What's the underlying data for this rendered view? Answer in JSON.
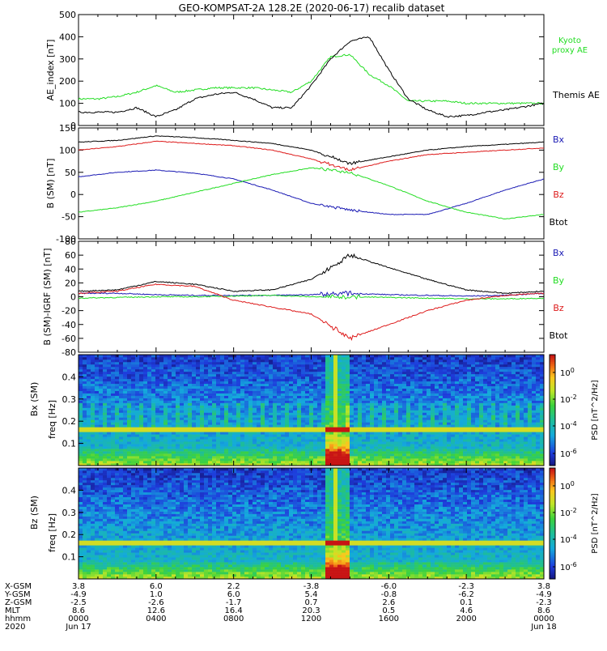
{
  "title": "GEO-KOMPSAT-2A 128.2E (2020-06-17) recalib dataset",
  "colors": {
    "bx": "#1a1ab4",
    "by": "#22dd22",
    "bz": "#dd1a1a",
    "btot": "#000000",
    "kyoto": "#22dd22",
    "themis": "#000000"
  },
  "chart_data": [
    {
      "type": "line",
      "ylabel": "AE_index [nT]",
      "ylim": [
        0,
        500
      ],
      "yticks": [
        0,
        100,
        200,
        300,
        400,
        500
      ],
      "legend": [
        {
          "name": "Kyoto proxy AE",
          "color": "#22dd22"
        },
        {
          "name": "Themis AE",
          "color": "#000000"
        }
      ],
      "x_hours": [
        0,
        1,
        2,
        3,
        4,
        5,
        6,
        7,
        8,
        9,
        10,
        11,
        12,
        13,
        14,
        15,
        16,
        17,
        18,
        19,
        20,
        21,
        22,
        23,
        24
      ],
      "series": [
        {
          "name": "Kyoto proxy AE",
          "values": [
            120,
            120,
            130,
            150,
            180,
            150,
            160,
            170,
            170,
            170,
            160,
            150,
            200,
            310,
            320,
            230,
            180,
            110,
            110,
            110,
            100,
            100,
            100,
            100,
            100
          ]
        },
        {
          "name": "Themis AE",
          "values": [
            60,
            60,
            60,
            80,
            40,
            70,
            120,
            140,
            150,
            120,
            80,
            80,
            180,
            300,
            380,
            400,
            250,
            120,
            70,
            40,
            45,
            60,
            70,
            85,
            100
          ]
        }
      ]
    },
    {
      "type": "line",
      "ylabel": "B (SM) [nT]",
      "ylim": [
        -100,
        150
      ],
      "yticks": [
        -100,
        -50,
        0,
        50,
        100,
        150
      ],
      "legend": [
        {
          "name": "Bx",
          "color": "#1a1ab4"
        },
        {
          "name": "By",
          "color": "#22dd22"
        },
        {
          "name": "Bz",
          "color": "#dd1a1a"
        },
        {
          "name": "Btot",
          "color": "#000000"
        }
      ],
      "x_hours": [
        0,
        2,
        4,
        6,
        8,
        10,
        12,
        14,
        16,
        18,
        20,
        22,
        24
      ],
      "series": [
        {
          "name": "Bx",
          "values": [
            40,
            50,
            55,
            48,
            35,
            10,
            -20,
            -35,
            -45,
            -45,
            -20,
            10,
            35
          ]
        },
        {
          "name": "By",
          "values": [
            -40,
            -30,
            -15,
            5,
            25,
            45,
            60,
            50,
            20,
            -15,
            -40,
            -55,
            -45
          ]
        },
        {
          "name": "Bz",
          "values": [
            100,
            108,
            120,
            115,
            110,
            100,
            80,
            55,
            75,
            90,
            95,
            100,
            105
          ]
        },
        {
          "name": "Btot",
          "values": [
            118,
            122,
            132,
            128,
            122,
            115,
            100,
            70,
            85,
            100,
            108,
            113,
            118
          ]
        }
      ]
    },
    {
      "type": "line",
      "ylabel": "B (SM)-IGRF (SM) [nT]",
      "ylim": [
        -80,
        80
      ],
      "yticks": [
        -80,
        -60,
        -40,
        -20,
        0,
        20,
        40,
        60,
        80
      ],
      "legend": [
        {
          "name": "Bx",
          "color": "#1a1ab4"
        },
        {
          "name": "By",
          "color": "#22dd22"
        },
        {
          "name": "Bz",
          "color": "#dd1a1a"
        },
        {
          "name": "Btot",
          "color": "#000000"
        }
      ],
      "x_hours": [
        0,
        2,
        4,
        6,
        8,
        10,
        12,
        14,
        16,
        18,
        20,
        22,
        24
      ],
      "series": [
        {
          "name": "Bx",
          "values": [
            5,
            5,
            3,
            2,
            2,
            2,
            3,
            5,
            3,
            2,
            1,
            2,
            5
          ]
        },
        {
          "name": "By",
          "values": [
            -2,
            -1,
            0,
            0,
            1,
            2,
            0,
            0,
            -1,
            -2,
            -3,
            -3,
            -2
          ]
        },
        {
          "name": "Bz",
          "values": [
            5,
            8,
            18,
            15,
            -5,
            -15,
            -25,
            -60,
            -40,
            -20,
            -5,
            2,
            5
          ]
        },
        {
          "name": "Btot",
          "values": [
            8,
            10,
            22,
            18,
            8,
            10,
            25,
            60,
            42,
            25,
            10,
            5,
            8
          ]
        }
      ]
    },
    {
      "type": "heatmap",
      "panel": "Bx (SM)",
      "ylabel": "freq [Hz]",
      "yticks": [
        0.1,
        0.2,
        0.3,
        0.4
      ],
      "ylim": [
        0,
        0.5
      ],
      "colorbar_label": "PSD [nT^2/Hz]",
      "colorbar_ticks": [
        "10^0",
        "10^-2",
        "10^-4",
        "10^-6"
      ]
    },
    {
      "type": "heatmap",
      "panel": "Bz (SM)",
      "ylabel": "freq [Hz]",
      "yticks": [
        0.1,
        0.2,
        0.3,
        0.4
      ],
      "ylim": [
        0,
        0.5
      ],
      "colorbar_label": "PSD [nT^2/Hz]",
      "colorbar_ticks": [
        "10^0",
        "10^-2",
        "10^-4",
        "10^-6"
      ]
    }
  ],
  "axis_rows": {
    "labels": [
      "X-GSM",
      "Y-GSM",
      "Z-GSM",
      "MLT",
      "hhmm",
      "2020"
    ],
    "x_positions": [
      "0000",
      "0400",
      "0800",
      "1200",
      "1600",
      "2000",
      "0000"
    ],
    "columns": [
      {
        "x_gsm": "3.8",
        "y_gsm": "-4.9",
        "z_gsm": "-2.5",
        "mlt": "8.6",
        "hhmm": "0000",
        "date": "Jun 17"
      },
      {
        "x_gsm": "6.0",
        "y_gsm": "1.0",
        "z_gsm": "-2.6",
        "mlt": "12.6",
        "hhmm": "0400",
        "date": ""
      },
      {
        "x_gsm": "2.2",
        "y_gsm": "6.0",
        "z_gsm": "-1.7",
        "mlt": "16.4",
        "hhmm": "0800",
        "date": ""
      },
      {
        "x_gsm": "-3.8",
        "y_gsm": "5.4",
        "z_gsm": "0.7",
        "mlt": "20.3",
        "hhmm": "1200",
        "date": ""
      },
      {
        "x_gsm": "-6.0",
        "y_gsm": "-0.8",
        "z_gsm": "2.6",
        "mlt": "0.5",
        "hhmm": "1600",
        "date": ""
      },
      {
        "x_gsm": "-2.3",
        "y_gsm": "-6.2",
        "z_gsm": "0.1",
        "mlt": "4.6",
        "hhmm": "2000",
        "date": ""
      },
      {
        "x_gsm": "3.8",
        "y_gsm": "-4.9",
        "z_gsm": "-2.3",
        "mlt": "8.6",
        "hhmm": "0000",
        "date": "Jun 18"
      }
    ]
  }
}
